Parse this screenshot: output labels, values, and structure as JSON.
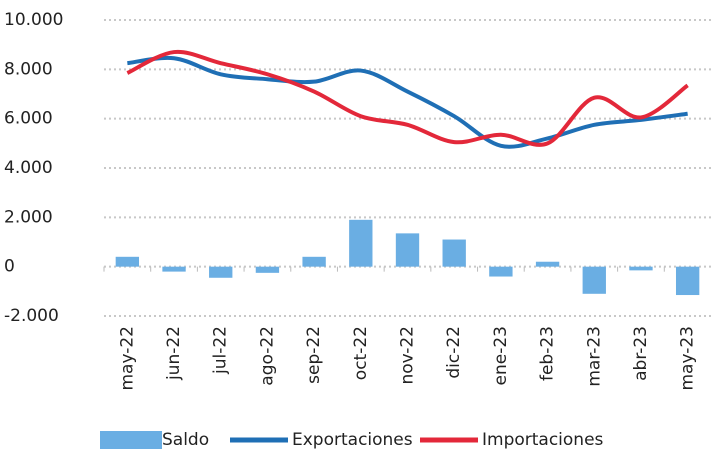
{
  "chart_data": {
    "type": "bar-line",
    "categories": [
      "may-22",
      "jun-22",
      "jul-22",
      "ago-22",
      "sep-22",
      "oct-22",
      "nov-22",
      "dic-22",
      "ene-23",
      "feb-23",
      "mar-23",
      "abr-23",
      "may-23"
    ],
    "series": [
      {
        "name": "Saldo",
        "type": "bar",
        "color": "#6aaee3",
        "values": [
          400,
          -200,
          -450,
          -250,
          400,
          1900,
          1350,
          1100,
          -400,
          200,
          -1100,
          -150,
          -1150
        ]
      },
      {
        "name": "Exportaciones",
        "type": "line",
        "color": "#1f6fb5",
        "values": [
          8250,
          8450,
          7800,
          7600,
          7500,
          7950,
          7100,
          6100,
          4900,
          5200,
          5750,
          5950,
          6200
        ]
      },
      {
        "name": "Importaciones",
        "type": "line",
        "color": "#e3283a",
        "values": [
          7850,
          8700,
          8250,
          7800,
          7100,
          6100,
          5750,
          5050,
          5350,
          5000,
          6850,
          6050,
          7350
        ]
      }
    ],
    "ylim": [
      -2000,
      10000
    ],
    "yticks": [
      {
        "value": -2000,
        "label": "-2.000"
      },
      0,
      {
        "value": 2000,
        "label": "2.000"
      },
      {
        "value": 4000,
        "label": "4.000"
      },
      {
        "value": 6000,
        "label": "6.000"
      },
      {
        "value": 8000,
        "label": "8.000"
      },
      {
        "value": 10000,
        "label": "10.000"
      }
    ],
    "grid": true
  }
}
